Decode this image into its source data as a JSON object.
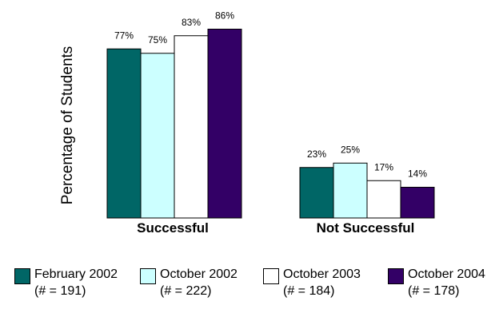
{
  "chart_data": {
    "type": "bar",
    "title": "",
    "xlabel": "",
    "ylabel": "Percentage of Students",
    "ylim": [
      0,
      100
    ],
    "grid": false,
    "legend_position": "bottom",
    "categories": [
      "Successful",
      "Not Successful"
    ],
    "series": [
      {
        "name": "February 2002",
        "n_label": "(# = 191)",
        "color": "#006666",
        "values": [
          77,
          23
        ],
        "value_labels": [
          "77%",
          "23%"
        ]
      },
      {
        "name": "October 2002",
        "n_label": "(# = 222)",
        "color": "#ccffff",
        "values": [
          75,
          25
        ],
        "value_labels": [
          "75%",
          "25%"
        ]
      },
      {
        "name": "October 2003",
        "n_label": "(# = 184)",
        "color": "#ffffff",
        "values": [
          83,
          17
        ],
        "value_labels": [
          "83%",
          "17%"
        ]
      },
      {
        "name": "October 2004",
        "n_label": "(# = 178)",
        "color": "#330066",
        "values": [
          86,
          14
        ],
        "value_labels": [
          "86%",
          "14%"
        ]
      }
    ]
  }
}
